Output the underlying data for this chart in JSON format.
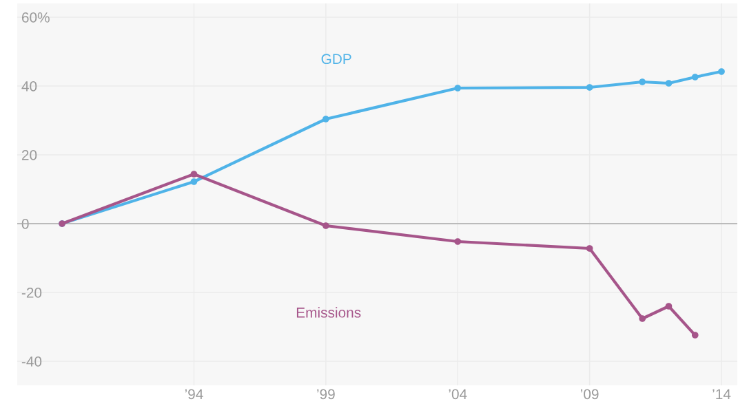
{
  "chart_data": {
    "type": "line",
    "x": [
      1989,
      1994,
      1999,
      2004,
      2009,
      2011,
      2012,
      2013,
      2014
    ],
    "series": [
      {
        "name": "GDP",
        "color": "#4fb3e8",
        "values": [
          0,
          12.2,
          30.4,
          39.4,
          39.6,
          41.2,
          40.8,
          42.6,
          44.2
        ]
      },
      {
        "name": "Emissions",
        "color": "#a6558a",
        "values": [
          0,
          14.4,
          -0.6,
          -5.2,
          -7.2,
          -27.6,
          -24,
          -32.4,
          null
        ]
      }
    ],
    "xlim": [
      1987.3,
      2014.6
    ],
    "xticks": [
      {
        "value": 1994,
        "label": "’94"
      },
      {
        "value": 1999,
        "label": "’99"
      },
      {
        "value": 2004,
        "label": "’04"
      },
      {
        "value": 2009,
        "label": "’09"
      },
      {
        "value": 2014,
        "label": "’14"
      }
    ],
    "ylim": [
      -47,
      64
    ],
    "yticks": [
      {
        "value": 60,
        "label": "60%"
      },
      40,
      20,
      0,
      -20,
      -40
    ],
    "ref_lines": [
      {
        "axis": "y",
        "value": 0,
        "color": "#aaaaaa"
      }
    ],
    "grid": true,
    "marker": "circle",
    "line_style": "solid",
    "legend": false
  }
}
